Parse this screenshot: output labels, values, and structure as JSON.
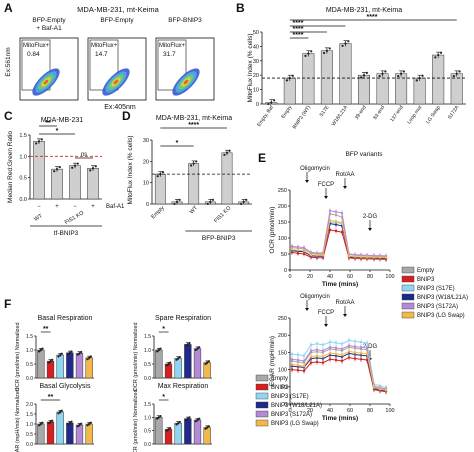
{
  "panel_letters": [
    "A",
    "B",
    "C",
    "D",
    "E",
    "F"
  ],
  "colors": {
    "empty": "#a8a8a8",
    "bnip3": "#d62020",
    "s17e": "#8fd6f2",
    "w18l21a": "#1f2a8c",
    "s172a": "#b48ad6",
    "lgswap": "#f2b84a",
    "gray_bar": "#cfcfcf",
    "black": "#111111",
    "dash_red": "#d62020"
  },
  "panel_a": {
    "title": "MDA-MB-231, mt-Keima",
    "ylabel": "Ex:561nm",
    "xlabel": "Ex:405nm",
    "flow_plots": [
      {
        "header": "BFP-Empty\n+ Baf-A1",
        "header_l1": "BFP-Empty",
        "header_l2": "+ Baf-A1",
        "gate_label": "MitoFlux+",
        "value": "0.84"
      },
      {
        "header_l1": "BFP-Empty",
        "header_l2": "",
        "gate_label": "MitoFlux+",
        "value": "14.7"
      },
      {
        "header_l1": "BFP-BNIP3",
        "header_l2": "",
        "gate_label": "MitoFlux+",
        "value": "31.7"
      }
    ]
  },
  "chart_data": [
    {
      "panel": "B",
      "type": "bar",
      "title": "MDA-MB-231, mt-Keima",
      "ylabel": "MitoFlux Index (% cells)",
      "xlabel": "BFP variants",
      "ylim": [
        0,
        50
      ],
      "yticks": [
        0,
        10,
        20,
        30,
        40,
        50
      ],
      "categories": [
        "Empty, Baf",
        "Empty",
        "BNIP3 (WT)",
        "S17E",
        "W18/L21A",
        "39-end",
        "83-end",
        "137-end",
        "Loop mut",
        "LG Swap",
        "S172A"
      ],
      "values": [
        1,
        18,
        35,
        37,
        42,
        20,
        21,
        21,
        18,
        34,
        21
      ],
      "reference_line": 18,
      "significance": "****"
    },
    {
      "panel": "C",
      "type": "bar",
      "title": "MDA-MB-231",
      "ylabel": "Median Red:Green Ratio",
      "ylim": [
        0,
        1.5
      ],
      "yticks": [
        0.0,
        0.5,
        1.0,
        1.5
      ],
      "categories": [
        "−",
        "+",
        "−",
        "+"
      ],
      "group_labels": [
        "WT",
        "FIS1 KO"
      ],
      "treatment_label": "Baf-A1",
      "construct_label": "tf-BNIP3",
      "values": [
        1.35,
        0.7,
        0.78,
        0.72
      ],
      "reference_line": 1.0,
      "significance": [
        "**",
        "*",
        "ns"
      ]
    },
    {
      "panel": "D",
      "type": "bar",
      "title": "MDA-MB-231, mt-Keima",
      "ylabel": "MitoFlux Index (% cells)",
      "ylim": [
        0,
        30
      ],
      "yticks": [
        0,
        10,
        20,
        30
      ],
      "categories": [
        "Empty",
        "Empty +Baf",
        "WT",
        "WT +Baf",
        "FIS1 KO",
        "FIS1 KO +Baf"
      ],
      "group_labels": [
        "Empty",
        "WT",
        "FIS1 KO"
      ],
      "construct_label": "BFP-BNIP3",
      "values": [
        14,
        1,
        19,
        1,
        24,
        1
      ],
      "reference_line": 14,
      "significance": [
        "****",
        "*"
      ]
    },
    {
      "panel": "E",
      "type": "line",
      "ylabel": "OCR (pmol/min)",
      "xlabel": "Time (mins)",
      "ylim": [
        0,
        250
      ],
      "xlim": [
        0,
        100
      ],
      "yticks": [
        0,
        50,
        100,
        150,
        200,
        250
      ],
      "xticks": [
        0,
        20,
        40,
        60,
        80,
        100
      ],
      "injections": [
        "Oligomycin",
        "FCCP",
        "Rot/AA",
        "2-DG"
      ],
      "x": [
        2,
        8,
        14,
        21,
        27,
        33,
        40,
        46,
        52,
        59,
        65,
        71,
        77,
        84,
        90,
        96
      ],
      "series": [
        {
          "name": "Empty",
          "values": [
            70,
            68,
            66,
            52,
            50,
            50,
            175,
            172,
            165,
            48,
            46,
            45,
            44,
            43,
            42,
            42
          ]
        },
        {
          "name": "BNIP3",
          "values": [
            55,
            52,
            50,
            40,
            38,
            38,
            125,
            122,
            118,
            38,
            36,
            35,
            35,
            34,
            34,
            33
          ]
        },
        {
          "name": "BNIP3 (S17E)",
          "values": [
            62,
            60,
            58,
            45,
            44,
            44,
            150,
            148,
            145,
            42,
            40,
            40,
            39,
            38,
            38,
            38
          ]
        },
        {
          "name": "BNIP3 (W18/L21A)",
          "values": [
            60,
            58,
            57,
            44,
            43,
            43,
            145,
            142,
            138,
            41,
            40,
            39,
            38,
            38,
            37,
            37
          ]
        },
        {
          "name": "BNIP3 (S172A)",
          "values": [
            74,
            72,
            70,
            55,
            53,
            53,
            185,
            182,
            178,
            50,
            48,
            47,
            46,
            45,
            45,
            44
          ]
        },
        {
          "name": "BNIP3 (LG Swap)",
          "values": [
            64,
            62,
            60,
            47,
            46,
            46,
            155,
            152,
            148,
            43,
            42,
            41,
            40,
            40,
            39,
            39
          ]
        }
      ]
    },
    {
      "panel": "E2",
      "type": "line",
      "ylabel": "ECAR (mpH/min)",
      "xlabel": "Time (mins)",
      "ylim": [
        0,
        250
      ],
      "xlim": [
        0,
        100
      ],
      "yticks": [
        0,
        50,
        100,
        150,
        200,
        250
      ],
      "xticks": [
        0,
        20,
        40,
        60,
        80,
        100
      ],
      "injections": [
        "Oligomycin",
        "FCCP",
        "Rot/AA",
        "2-DG"
      ],
      "x": [
        2,
        8,
        14,
        21,
        27,
        33,
        40,
        46,
        52,
        59,
        65,
        71,
        77,
        84,
        90,
        96
      ],
      "series": [
        {
          "name": "Empty",
          "values": [
            125,
            122,
            120,
            150,
            152,
            150,
            160,
            158,
            155,
            165,
            162,
            160,
            158,
            50,
            45,
            42
          ]
        },
        {
          "name": "BNIP3",
          "values": [
            100,
            98,
            96,
            120,
            122,
            120,
            130,
            128,
            125,
            135,
            132,
            130,
            128,
            42,
            38,
            36
          ]
        },
        {
          "name": "BNIP3 (S17E)",
          "values": [
            145,
            143,
            140,
            172,
            175,
            172,
            180,
            178,
            175,
            185,
            182,
            180,
            178,
            58,
            52,
            48
          ]
        },
        {
          "name": "BNIP3 (W18/L21A)",
          "values": [
            110,
            108,
            106,
            132,
            134,
            132,
            142,
            140,
            137,
            147,
            144,
            142,
            140,
            45,
            41,
            38
          ]
        },
        {
          "name": "BNIP3 (S172A)",
          "values": [
            130,
            128,
            125,
            155,
            158,
            155,
            165,
            163,
            160,
            170,
            167,
            165,
            163,
            52,
            47,
            44
          ]
        },
        {
          "name": "BNIP3 (LG Swap)",
          "values": [
            115,
            113,
            110,
            138,
            140,
            138,
            148,
            146,
            143,
            153,
            150,
            148,
            146,
            48,
            43,
            40
          ]
        }
      ]
    },
    {
      "panel": "F1",
      "type": "bar",
      "title": "Basal Respiration",
      "ylabel": "OCR (pmol/min) Normalized",
      "ylim": [
        0.0,
        1.5
      ],
      "yticks": [
        0.0,
        0.5,
        1.0,
        1.5
      ],
      "categories": [
        "Empty",
        "BNIP3",
        "BNIP3 (S17E)",
        "BNIP3 (W18/L21A)",
        "BNIP3 (S172A)",
        "BNIP3 (LG Swap)"
      ],
      "values": [
        1.0,
        0.6,
        0.82,
        0.9,
        0.88,
        0.72
      ],
      "significance": "**"
    },
    {
      "panel": "F2",
      "type": "bar",
      "title": "Spare Respiration",
      "ylabel": "OCR (pmol/min) Normalized",
      "ylim": [
        0.0,
        1.5
      ],
      "yticks": [
        0.0,
        0.5,
        1.0,
        1.5
      ],
      "categories": [
        "Empty",
        "BNIP3",
        "BNIP3 (S17E)",
        "BNIP3 (W18/L21A)",
        "BNIP3 (S172A)",
        "BNIP3 (LG Swap)"
      ],
      "values": [
        1.0,
        0.5,
        0.7,
        1.2,
        1.05,
        0.55
      ],
      "significance": "*"
    },
    {
      "panel": "F3",
      "type": "bar",
      "title": "Basal Glycolysis",
      "ylabel": "ECAR (mpH/min) Normalized",
      "ylim": [
        0.0,
        2.0
      ],
      "yticks": [
        0.0,
        0.5,
        1.0,
        1.5,
        2.0
      ],
      "categories": [
        "Empty",
        "BNIP3",
        "BNIP3 (S17E)",
        "BNIP3 (W18/L21A)",
        "BNIP3 (S172A)",
        "BNIP3 (LG Swap)"
      ],
      "values": [
        1.0,
        1.1,
        1.6,
        1.05,
        0.95,
        1.0
      ],
      "significance": "**"
    },
    {
      "panel": "F4",
      "type": "bar",
      "title": "Max Respiration",
      "ylabel": "OCR (pmol/min) Normalized",
      "ylim": [
        0.0,
        1.5
      ],
      "yticks": [
        0.0,
        0.5,
        1.0,
        1.5
      ],
      "categories": [
        "Empty",
        "BNIP3",
        "BNIP3 (S17E)",
        "BNIP3 (W18/L21A)",
        "BNIP3 (S172A)",
        "BNIP3 (LG Swap)"
      ],
      "values": [
        1.0,
        0.55,
        0.78,
        0.95,
        0.9,
        0.62
      ],
      "significance": "*"
    }
  ],
  "legend_e": [
    "Empty",
    "BNIP3",
    "BNIP3 (S17E)",
    "BNIP3 (W18/L21A)",
    "BNIP3 (S172A)",
    "BNIP3 (LG Swap)"
  ],
  "legend_f": [
    "Empty",
    "BNIP3",
    "BNIP3 (S17E)",
    "BNIP3 (W18/L21A)",
    "BNIP3 (S172A)",
    "BNIP3 (LG Swap)"
  ]
}
